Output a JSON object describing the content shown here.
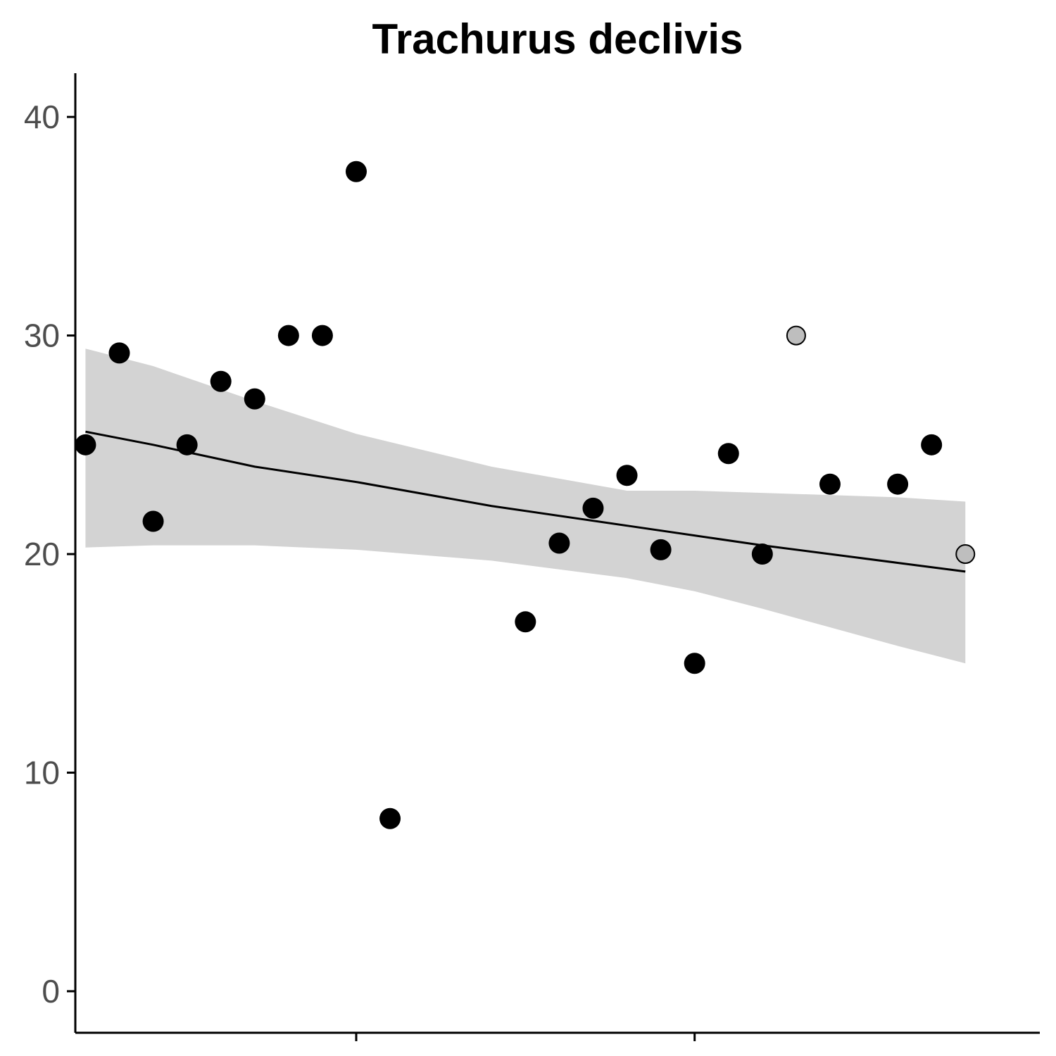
{
  "chart_data": {
    "type": "scatter",
    "title": "Trachurus declivis",
    "xlabel": "",
    "ylabel": "",
    "xlim": [
      -0.3,
      28.2
    ],
    "ylim": [
      -1.9,
      42
    ],
    "y_ticks": [
      0,
      10,
      20,
      30,
      40
    ],
    "y_tick_labels": [
      "0",
      "10",
      "20",
      "30",
      "40"
    ],
    "x_ticks": [
      8,
      18
    ],
    "x_tick_labels": [
      "",
      ""
    ],
    "grid": false,
    "legend": "none",
    "colors": {
      "point": "#000000",
      "point_highlight": "#bebebe",
      "ribbon": "#d3d3d3",
      "trend": "#000000",
      "axis": "#000000"
    },
    "series": [
      {
        "points": [
          {
            "x": 0,
            "y": 25.0
          },
          {
            "x": 1,
            "y": 29.2
          },
          {
            "x": 2,
            "y": 21.5
          },
          {
            "x": 3,
            "y": 25.0
          },
          {
            "x": 4,
            "y": 27.9
          },
          {
            "x": 5,
            "y": 27.1
          },
          {
            "x": 6,
            "y": 30.0
          },
          {
            "x": 7,
            "y": 30.0
          },
          {
            "x": 8,
            "y": 37.5
          },
          {
            "x": 9,
            "y": 7.9
          },
          {
            "x": 13,
            "y": 16.9
          },
          {
            "x": 14,
            "y": 20.5
          },
          {
            "x": 15,
            "y": 22.1
          },
          {
            "x": 16,
            "y": 23.6
          },
          {
            "x": 17,
            "y": 20.2
          },
          {
            "x": 18,
            "y": 15.0
          },
          {
            "x": 19,
            "y": 24.6
          },
          {
            "x": 20,
            "y": 20.0
          },
          {
            "x": 22,
            "y": 23.2
          },
          {
            "x": 24,
            "y": 23.2
          },
          {
            "x": 25,
            "y": 25.0
          }
        ]
      },
      {
        "highlight": true,
        "points": [
          {
            "x": 21,
            "y": 30.0
          },
          {
            "x": 26,
            "y": 20.0
          }
        ]
      }
    ],
    "trend": {
      "x": [
        0,
        2,
        5,
        8,
        12,
        16,
        20,
        24,
        26
      ],
      "y": [
        25.6,
        25.0,
        24.0,
        23.3,
        22.2,
        21.3,
        20.4,
        19.6,
        19.2
      ]
    },
    "ribbon": {
      "x": [
        0,
        2,
        5,
        8,
        12,
        16,
        18,
        20,
        24,
        26
      ],
      "upper": [
        29.4,
        28.6,
        27.0,
        25.5,
        24.0,
        22.9,
        22.9,
        22.8,
        22.6,
        22.4
      ],
      "lower": [
        20.3,
        20.4,
        20.4,
        20.2,
        19.7,
        18.9,
        18.3,
        17.5,
        15.8,
        15.0
      ]
    }
  }
}
